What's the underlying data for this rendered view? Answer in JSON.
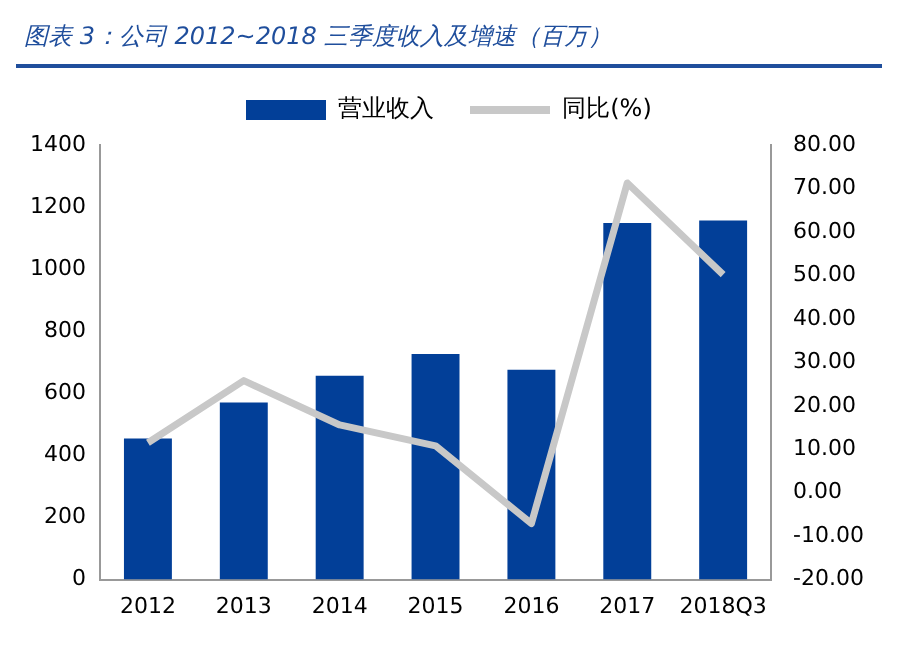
{
  "chart_data": {
    "type": "bar",
    "title": "图表 3：公司 2012~2018 三季度收入及增速（百万）",
    "categories": [
      "2012",
      "2013",
      "2014",
      "2015",
      "2016",
      "2017",
      "2018Q3"
    ],
    "series": [
      {
        "name": "营业收入",
        "color": "#023f98",
        "values": [
          455,
          571,
          657,
          727,
          676,
          1149,
          1157
        ]
      },
      {
        "name": "同比(%)",
        "type": "line",
        "axis": "y2",
        "color": "#c8c8c8",
        "values": [
          11.5,
          25.8,
          15.6,
          10.8,
          -7.1,
          71.3,
          50.2
        ]
      }
    ],
    "ylim": [
      0,
      1400
    ],
    "yticks": [
      0,
      200,
      400,
      600,
      800,
      1000,
      1200,
      1400
    ],
    "y2lim": [
      -20,
      80
    ],
    "y2ticks": [
      {
        "value": -20,
        "label": "-20.00"
      },
      {
        "value": -10,
        "label": "-10.00"
      },
      {
        "value": 0,
        "label": "0.00"
      },
      {
        "value": 10,
        "label": "10.00"
      },
      {
        "value": 20,
        "label": "20.00"
      },
      {
        "value": 30,
        "label": "30.00"
      },
      {
        "value": 40,
        "label": "40.00"
      },
      {
        "value": 50,
        "label": "50.00"
      },
      {
        "value": 60,
        "label": "60.00"
      },
      {
        "value": 70,
        "label": "70.00"
      },
      {
        "value": 80,
        "label": "80.00"
      }
    ],
    "grid": false,
    "legend": "top",
    "marker": "none"
  }
}
